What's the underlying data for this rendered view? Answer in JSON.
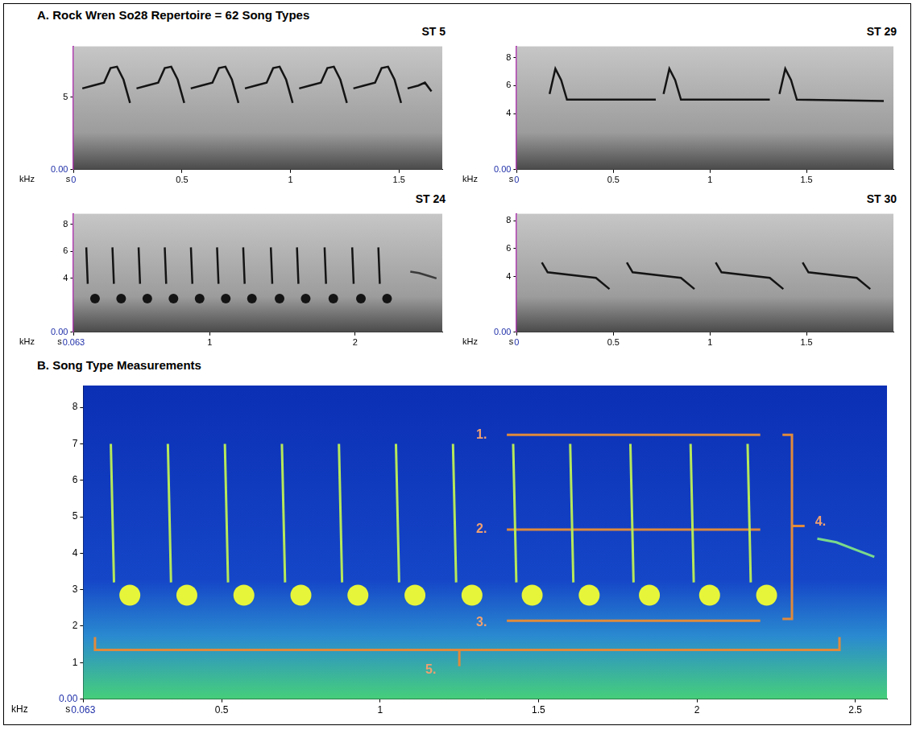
{
  "title": "A. Rock Wren So28 Repertoire = 62 Song Types",
  "chart_data": [
    {
      "type": "line",
      "title": "ST 5",
      "x_label": "s",
      "y_label": "kHz",
      "grid": false,
      "xlim": [
        0,
        1.7
      ],
      "ylim": [
        0,
        8.5
      ],
      "xticks": [
        0,
        0.5,
        1,
        1.5
      ],
      "yticks": [
        {
          "value": 0,
          "label": "0.00"
        },
        5
      ],
      "series": [
        {
          "color": "#141414",
          "line_style": "solid",
          "x": [
            0.04,
            0.09,
            0.14,
            0.17,
            0.2,
            0.23,
            0.26,
            null,
            0.29,
            0.34,
            0.39,
            0.42,
            0.45,
            0.48,
            0.51,
            null,
            0.54,
            0.59,
            0.64,
            0.67,
            0.7,
            0.73,
            0.76,
            null,
            0.79,
            0.84,
            0.89,
            0.92,
            0.95,
            0.98,
            1.01,
            null,
            1.04,
            1.09,
            1.14,
            1.17,
            1.2,
            1.23,
            1.26,
            null,
            1.29,
            1.34,
            1.39,
            1.42,
            1.45,
            1.48,
            1.51,
            null,
            1.54,
            1.59,
            1.62,
            1.65
          ],
          "y": [
            5.6,
            5.8,
            6.0,
            7.0,
            7.1,
            6.2,
            4.6,
            null,
            5.6,
            5.8,
            6.0,
            7.0,
            7.1,
            6.2,
            4.6,
            null,
            5.6,
            5.8,
            6.0,
            7.0,
            7.1,
            6.2,
            4.6,
            null,
            5.6,
            5.8,
            6.0,
            7.0,
            7.1,
            6.2,
            4.6,
            null,
            5.6,
            5.8,
            6.0,
            7.0,
            7.1,
            6.2,
            4.6,
            null,
            5.6,
            5.8,
            6.0,
            7.0,
            7.1,
            6.2,
            4.6,
            null,
            5.6,
            5.8,
            6.0,
            5.4
          ]
        }
      ]
    },
    {
      "type": "line",
      "title": "ST 29",
      "x_label": "s",
      "y_label": "kHz",
      "grid": false,
      "xlim": [
        0,
        1.95
      ],
      "ylim": [
        0,
        8.8
      ],
      "xticks": [
        0,
        0.5,
        1,
        1.5
      ],
      "yticks": [
        {
          "value": 0,
          "label": "0.00"
        },
        4,
        6,
        8
      ],
      "series": [
        {
          "color": "#141414",
          "line_style": "solid",
          "x": [
            0.17,
            0.2,
            0.23,
            0.26,
            0.72,
            null,
            0.76,
            0.79,
            0.82,
            0.85,
            1.31,
            null,
            1.36,
            1.39,
            1.42,
            1.45,
            1.9
          ],
          "y": [
            5.4,
            7.2,
            6.4,
            5.0,
            5.0,
            null,
            5.4,
            7.2,
            6.4,
            5.0,
            5.0,
            null,
            5.4,
            7.2,
            6.4,
            5.0,
            4.9
          ]
        }
      ]
    },
    {
      "type": "line",
      "title": "ST 24",
      "x_label": "s",
      "y_label": "kHz",
      "grid": false,
      "xlim": [
        0.063,
        2.6
      ],
      "ylim": [
        0,
        8.8
      ],
      "xticks": [
        0.063,
        1,
        2
      ],
      "yticks": [
        {
          "value": 0,
          "label": "0.00"
        },
        4,
        6,
        8
      ],
      "series": [
        {
          "color": "#141414",
          "line_style": "solid",
          "x": [
            0.15,
            0.16,
            null,
            0.33,
            0.34,
            null,
            0.51,
            0.52,
            null,
            0.69,
            0.7,
            null,
            0.87,
            0.88,
            null,
            1.05,
            1.06,
            null,
            1.23,
            1.24,
            null,
            1.42,
            1.43,
            null,
            1.6,
            1.61,
            null,
            1.79,
            1.8,
            null,
            1.98,
            1.99,
            null,
            2.16,
            2.17
          ],
          "y": [
            6.3,
            3.6,
            null,
            6.3,
            3.6,
            null,
            6.3,
            3.6,
            null,
            6.3,
            3.6,
            null,
            6.3,
            3.6,
            null,
            6.3,
            3.6,
            null,
            6.3,
            3.6,
            null,
            6.3,
            3.6,
            null,
            6.3,
            3.6,
            null,
            6.3,
            3.6,
            null,
            6.3,
            3.6,
            null,
            6.3,
            3.6
          ]
        },
        {
          "color": "#141414",
          "marker": "circle",
          "x": [
            0.21,
            0.39,
            0.57,
            0.75,
            0.93,
            1.11,
            1.29,
            1.48,
            1.66,
            1.85,
            2.04,
            2.22
          ],
          "y": [
            2.5,
            2.5,
            2.5,
            2.5,
            2.5,
            2.5,
            2.5,
            2.5,
            2.5,
            2.5,
            2.5,
            2.5
          ]
        },
        {
          "color": "#3a3a3a",
          "line_style": "solid",
          "x": [
            2.38,
            2.44,
            2.5,
            2.56
          ],
          "y": [
            4.5,
            4.4,
            4.2,
            4.0
          ]
        }
      ]
    },
    {
      "type": "line",
      "title": "ST 30",
      "x_label": "s",
      "y_label": "kHz",
      "grid": false,
      "xlim": [
        0,
        1.95
      ],
      "ylim": [
        0,
        8.5
      ],
      "xticks": [
        0,
        0.5,
        1,
        1.5
      ],
      "yticks": [
        {
          "value": 0,
          "label": "0.00"
        },
        4,
        6,
        8
      ],
      "series": [
        {
          "color": "#141414",
          "line_style": "solid",
          "x": [
            0.13,
            0.16,
            0.41,
            0.48,
            null,
            0.57,
            0.6,
            0.85,
            0.92,
            null,
            1.03,
            1.06,
            1.31,
            1.38,
            null,
            1.48,
            1.51,
            1.76,
            1.83
          ],
          "y": [
            5.0,
            4.3,
            3.9,
            3.1,
            null,
            5.0,
            4.3,
            3.9,
            3.1,
            null,
            5.0,
            4.3,
            3.9,
            3.1,
            null,
            5.0,
            4.3,
            3.9,
            3.1
          ]
        }
      ]
    },
    {
      "type": "line",
      "title": "B. Song Type Measurements",
      "x_label": "s",
      "y_label": "kHz",
      "grid": false,
      "xlim": [
        0.063,
        2.6
      ],
      "ylim": [
        0,
        8.6
      ],
      "xticks": [
        0.063,
        0.5,
        1,
        1.5,
        2,
        2.5
      ],
      "yticks": [
        {
          "value": 0,
          "label": "0.00"
        },
        1,
        2,
        3,
        4,
        5,
        6,
        7,
        8
      ],
      "series": [
        {
          "color": "#b6e85a",
          "line_style": "solid",
          "x": [
            0.15,
            0.16,
            null,
            0.33,
            0.34,
            null,
            0.51,
            0.52,
            null,
            0.69,
            0.7,
            null,
            0.87,
            0.88,
            null,
            1.05,
            1.06,
            null,
            1.23,
            1.24,
            null,
            1.42,
            1.43,
            null,
            1.6,
            1.61,
            null,
            1.79,
            1.8,
            null,
            1.98,
            1.99,
            null,
            2.16,
            2.17
          ],
          "y": [
            7.0,
            3.2,
            null,
            7.0,
            3.2,
            null,
            7.0,
            3.2,
            null,
            7.0,
            3.2,
            null,
            7.0,
            3.2,
            null,
            7.0,
            3.2,
            null,
            7.0,
            3.2,
            null,
            7.0,
            3.2,
            null,
            7.0,
            3.2,
            null,
            7.0,
            3.2,
            null,
            7.0,
            3.2,
            null,
            7.0,
            3.2
          ]
        },
        {
          "color": "#e6f53a",
          "marker": "circle",
          "x": [
            0.21,
            0.39,
            0.57,
            0.75,
            0.93,
            1.11,
            1.29,
            1.48,
            1.66,
            1.85,
            2.04,
            2.22
          ],
          "y": [
            2.85,
            2.85,
            2.85,
            2.85,
            2.85,
            2.85,
            2.85,
            2.85,
            2.85,
            2.85,
            2.85,
            2.85
          ]
        },
        {
          "color": "#7ad98a",
          "line_style": "solid",
          "x": [
            2.38,
            2.44,
            2.5,
            2.56
          ],
          "y": [
            4.4,
            4.3,
            4.1,
            3.9
          ]
        },
        {
          "color": "#e08a3c",
          "line_style": "solid",
          "x": [
            1.4,
            2.2,
            null,
            1.4,
            2.2,
            null,
            1.4,
            2.2
          ],
          "y": [
            7.25,
            7.25,
            null,
            4.65,
            4.65,
            null,
            2.15,
            2.15
          ]
        },
        {
          "color": "#e08a3c",
          "line_style": "solid",
          "x": [
            2.27,
            2.3,
            2.3,
            2.27,
            null,
            2.3,
            2.34
          ],
          "y": [
            7.25,
            7.25,
            2.2,
            2.2,
            null,
            4.75,
            4.75
          ]
        },
        {
          "color": "#e08a3c",
          "line_style": "solid",
          "x": [
            0.1,
            0.1,
            2.45,
            2.45,
            null,
            1.25,
            1.25
          ],
          "y": [
            1.7,
            1.35,
            1.35,
            1.7,
            null,
            1.35,
            0.9
          ]
        }
      ],
      "annotations": [
        {
          "text": "1.",
          "x": 1.32,
          "y": 7.25
        },
        {
          "text": "2.",
          "x": 1.32,
          "y": 4.65
        },
        {
          "text": "3.",
          "x": 1.32,
          "y": 2.1
        },
        {
          "text": "4.",
          "x": 2.39,
          "y": 4.85
        },
        {
          "text": "5.",
          "x": 1.16,
          "y": 0.8
        }
      ]
    }
  ]
}
